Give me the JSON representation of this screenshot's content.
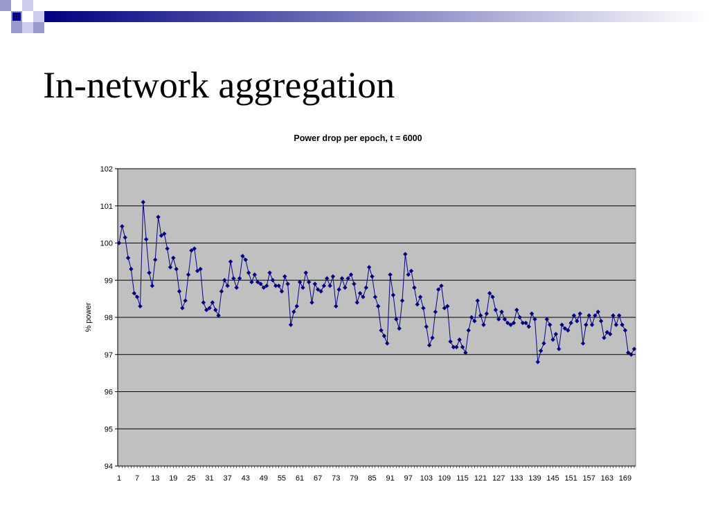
{
  "slide": {
    "title": "In-network aggregation"
  },
  "chart_data": {
    "type": "line",
    "title": "Power drop per epoch, t = 6000",
    "xlabel": "",
    "ylabel": "% power",
    "ylim": [
      94,
      102
    ],
    "yticks": [
      94,
      95,
      96,
      97,
      98,
      99,
      100,
      101,
      102
    ],
    "xtick_labels": [
      "1",
      "7",
      "13",
      "19",
      "25",
      "31",
      "37",
      "43",
      "49",
      "55",
      "61",
      "67",
      "73",
      "79",
      "85",
      "91",
      "97",
      "103",
      "109",
      "115",
      "121",
      "127",
      "133",
      "139",
      "145",
      "151",
      "157",
      "163",
      "169"
    ],
    "grid": true,
    "legend": "none",
    "colors": {
      "series": "#000080",
      "plot_bg": "#c0c0c0",
      "gridline": "#000000"
    },
    "series": [
      {
        "marker": "diamond",
        "x": [
          1,
          2,
          3,
          4,
          5,
          6,
          7,
          8,
          9,
          10,
          11,
          12,
          13,
          14,
          15,
          16,
          17,
          18,
          19,
          20,
          21,
          22,
          23,
          24,
          25,
          26,
          27,
          28,
          29,
          30,
          31,
          32,
          33,
          34,
          35,
          36,
          37,
          38,
          39,
          40,
          41,
          42,
          43,
          44,
          45,
          46,
          47,
          48,
          49,
          50,
          51,
          52,
          53,
          54,
          55,
          56,
          57,
          58,
          59,
          60,
          61,
          62,
          63,
          64,
          65,
          66,
          67,
          68,
          69,
          70,
          71,
          72,
          73,
          74,
          75,
          76,
          77,
          78,
          79,
          80,
          81,
          82,
          83,
          84,
          85,
          86,
          87,
          88,
          89,
          90,
          91,
          92,
          93,
          94,
          95,
          96,
          97,
          98,
          99,
          100,
          101,
          102,
          103,
          104,
          105,
          106,
          107,
          108,
          109,
          110,
          111,
          112,
          113,
          114,
          115,
          116,
          117,
          118,
          119,
          120,
          121,
          122,
          123,
          124,
          125,
          126,
          127,
          128,
          129,
          130,
          131,
          132,
          133,
          134,
          135,
          136,
          137,
          138,
          139,
          140,
          141,
          142,
          143,
          144,
          145,
          146,
          147,
          148,
          149,
          150,
          151,
          152,
          153,
          154,
          155,
          156,
          157,
          158,
          159,
          160,
          161,
          162,
          163,
          164,
          165,
          166,
          167,
          168,
          169,
          170,
          171,
          172
        ],
        "values": [
          100.0,
          100.45,
          100.15,
          99.6,
          99.3,
          98.65,
          98.55,
          98.3,
          101.1,
          100.1,
          99.2,
          98.85,
          99.55,
          100.7,
          100.2,
          100.25,
          99.85,
          99.35,
          99.6,
          99.3,
          98.7,
          98.25,
          98.45,
          99.15,
          99.8,
          99.85,
          99.25,
          99.3,
          98.4,
          98.2,
          98.25,
          98.4,
          98.2,
          98.05,
          98.7,
          99.0,
          98.85,
          99.5,
          99.05,
          98.8,
          99.05,
          99.65,
          99.55,
          99.2,
          98.95,
          99.15,
          98.95,
          98.9,
          98.8,
          98.85,
          99.2,
          99.0,
          98.85,
          98.85,
          98.7,
          99.1,
          98.9,
          97.8,
          98.15,
          98.3,
          98.95,
          98.8,
          99.2,
          98.95,
          98.4,
          98.9,
          98.75,
          98.7,
          98.85,
          99.05,
          98.85,
          99.1,
          98.3,
          98.75,
          99.05,
          98.8,
          99.05,
          99.15,
          98.9,
          98.4,
          98.65,
          98.55,
          98.8,
          99.35,
          99.1,
          98.55,
          98.3,
          97.65,
          97.5,
          97.3,
          99.15,
          98.6,
          97.95,
          97.7,
          98.45,
          99.7,
          99.15,
          99.25,
          98.8,
          98.35,
          98.55,
          98.25,
          97.75,
          97.25,
          97.45,
          98.15,
          98.75,
          98.85,
          98.25,
          98.3,
          97.35,
          97.2,
          97.2,
          97.4,
          97.2,
          97.05,
          97.65,
          98.0,
          97.9,
          98.45,
          98.05,
          97.8,
          98.1,
          98.65,
          98.55,
          98.2,
          97.95,
          98.15,
          97.95,
          97.85,
          97.8,
          97.85,
          98.2,
          98.0,
          97.85,
          97.85,
          97.75,
          98.1,
          97.95,
          96.8,
          97.1,
          97.3,
          97.95,
          97.8,
          97.4,
          97.55,
          97.15,
          97.8,
          97.7,
          97.65,
          97.85,
          98.05,
          97.9,
          98.1,
          97.3,
          97.8,
          98.05,
          97.8,
          98.05,
          98.15,
          97.9,
          97.45,
          97.6,
          97.55,
          98.05,
          97.8,
          98.05,
          97.8,
          97.65,
          97.05,
          97.0,
          97.15
        ]
      }
    ]
  }
}
